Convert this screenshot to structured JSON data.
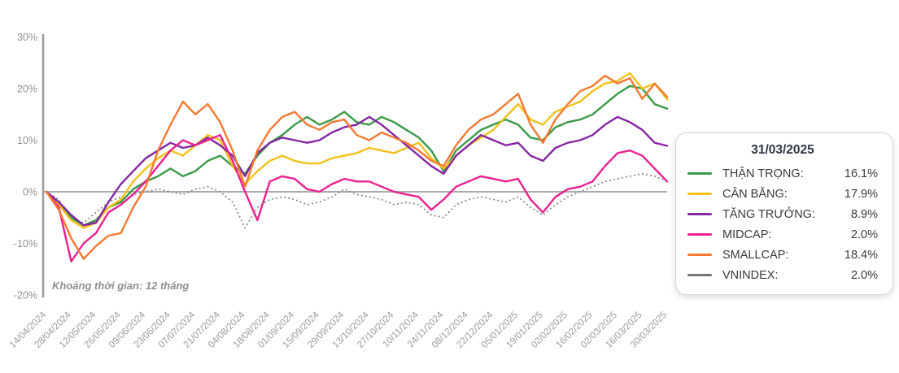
{
  "legend": {
    "title": "31/03/2025",
    "items": [
      {
        "label": "THẬN TRỌNG:",
        "value": "16.1%",
        "color": "#3c9a47",
        "line_style": "solid"
      },
      {
        "label": "CÂN BẰNG:",
        "value": "17.9%",
        "color": "#f2c119",
        "line_style": "solid"
      },
      {
        "label": "TĂNG TRƯỞNG:",
        "value": "8.9%",
        "color": "#8527a3",
        "line_style": "solid"
      },
      {
        "label": "MIDCAP:",
        "value": "2.0%",
        "color": "#ec2190",
        "line_style": "solid"
      },
      {
        "label": "SMALLCAP:",
        "value": "18.4%",
        "color": "#f57931",
        "line_style": "solid"
      },
      {
        "label": "VNINDEX:",
        "value": "2.0%",
        "color": "#757575",
        "line_style": "dotted"
      }
    ]
  },
  "chart_data": {
    "type": "line",
    "title": "",
    "xlabel": "",
    "ylabel": "",
    "annotation": "Khoảng thời gian: 12 tháng",
    "grid": false,
    "legend_position": "right",
    "ylim": [
      -20,
      30
    ],
    "y_ticks": [
      30,
      20,
      10,
      0,
      -10,
      -20
    ],
    "y_tick_labels": [
      "30%",
      "20%",
      "10%",
      "0%",
      "-10%",
      "-20%"
    ],
    "x_tick_labels": [
      "14/04/2024",
      "28/04/2024",
      "12/05/2024",
      "26/05/2024",
      "09/06/2024",
      "23/06/2024",
      "07/07/2024",
      "21/07/2024",
      "04/08/2024",
      "18/08/2024",
      "01/09/2024",
      "15/09/2024",
      "29/09/2024",
      "13/10/2024",
      "27/10/2024",
      "10/11/2024",
      "24/11/2024",
      "08/12/2024",
      "22/12/2024",
      "05/01/2025",
      "19/01/2025",
      "02/02/2025",
      "16/02/2025",
      "02/03/2025",
      "16/03/2025",
      "30/03/2025"
    ],
    "x_unit": "weekly points, ticks every 2nd point",
    "draw_order": [
      5,
      0,
      1,
      2,
      3,
      4
    ],
    "series": [
      {
        "name": "THẬN TRỌNG",
        "color": "#3c9a47",
        "dotted": false,
        "final_value": 16.1,
        "values": [
          0,
          -2,
          -5,
          -6.5,
          -5.5,
          -3,
          -2,
          0.5,
          2,
          3,
          4.5,
          3,
          4,
          6,
          7,
          5,
          3.5,
          7,
          9.5,
          11,
          13,
          14.5,
          13,
          14,
          15.5,
          13.5,
          13,
          14.5,
          13.5,
          12,
          10.5,
          8,
          4,
          8,
          10,
          12,
          13,
          14,
          13,
          10.5,
          10,
          12.5,
          13.5,
          14,
          15,
          17,
          19,
          20.5,
          20,
          17,
          16.1
        ]
      },
      {
        "name": "CÂN BẰNG",
        "color": "#f2c119",
        "dotted": false,
        "final_value": 17.9,
        "values": [
          0,
          -2.5,
          -5.5,
          -7,
          -6,
          -3,
          -1.5,
          2,
          4.5,
          6.5,
          8,
          7,
          9,
          11,
          10,
          5,
          1.5,
          4,
          6,
          7,
          6,
          5.5,
          5.5,
          6.5,
          7,
          7.5,
          8.5,
          8,
          7.5,
          8.5,
          9.5,
          6.5,
          4.5,
          7,
          9,
          10.5,
          12,
          14.5,
          17,
          14,
          13,
          15.5,
          16.5,
          17.5,
          19.5,
          21,
          21.5,
          23,
          20,
          21,
          17.9
        ]
      },
      {
        "name": "TĂNG TRƯỞNG",
        "color": "#8527a3",
        "dotted": false,
        "final_value": 8.9,
        "values": [
          0,
          -2,
          -4.5,
          -6.5,
          -6,
          -2,
          1.5,
          4,
          6.5,
          8,
          9.5,
          8.5,
          9,
          10.5,
          9,
          7,
          3,
          7.5,
          9.5,
          10.5,
          10,
          9.5,
          10,
          11.5,
          12.5,
          13,
          14.5,
          13,
          11,
          9,
          7,
          5,
          3.5,
          7,
          9,
          11,
          10,
          9,
          9.5,
          7,
          6,
          8.5,
          9.5,
          10,
          11,
          13,
          14.5,
          13.5,
          12,
          9.5,
          8.9
        ]
      },
      {
        "name": "MIDCAP",
        "color": "#ec2190",
        "dotted": false,
        "final_value": 2.0,
        "values": [
          0,
          -3,
          -13.5,
          -10,
          -8,
          -4,
          -2.5,
          -0.5,
          2,
          5,
          8,
          10,
          9,
          10,
          11,
          6,
          0,
          -5.5,
          2,
          3,
          2.5,
          0.5,
          0,
          1.5,
          2.5,
          2,
          2,
          1,
          0,
          -0.5,
          -1,
          -3.5,
          -1.5,
          1,
          2,
          3,
          2.5,
          2,
          2.5,
          -1.5,
          -4,
          -1,
          0.5,
          1,
          2,
          5,
          7.5,
          8,
          7,
          4.5,
          2
        ]
      },
      {
        "name": "SMALLCAP",
        "color": "#f57931",
        "dotted": false,
        "final_value": 18.4,
        "values": [
          0,
          -3.5,
          -9,
          -13,
          -10.5,
          -8.5,
          -8,
          -3,
          1,
          8,
          13,
          17.5,
          15,
          17,
          13.5,
          8,
          1,
          8,
          12,
          14.5,
          15.5,
          13,
          12,
          13.5,
          14,
          11,
          10,
          11.5,
          10.5,
          9.5,
          8,
          6,
          5,
          9,
          12,
          14,
          15,
          17,
          19,
          13,
          9.5,
          14,
          17,
          19.5,
          20.5,
          22.5,
          21,
          22,
          18,
          21,
          18.4
        ]
      },
      {
        "name": "VNINDEX",
        "color": "#8a8a8a",
        "dotted": true,
        "final_value": 2.0,
        "values": [
          0,
          -1.5,
          -5.5,
          -6,
          -4,
          -2,
          -1,
          -0.5,
          0,
          0.5,
          0,
          -0.5,
          0.5,
          1,
          0,
          -2,
          -7,
          -3,
          -1.5,
          -1,
          -1.5,
          -2.5,
          -2,
          -1,
          0.5,
          -0.5,
          -1,
          -1.5,
          -2.5,
          -2,
          -2.5,
          -4.5,
          -5,
          -2.5,
          -1.5,
          -1,
          -1.5,
          -2,
          -1,
          -3,
          -4.5,
          -2.5,
          -1,
          0,
          1,
          2,
          2.5,
          3,
          3.5,
          3,
          2
        ]
      }
    ]
  }
}
